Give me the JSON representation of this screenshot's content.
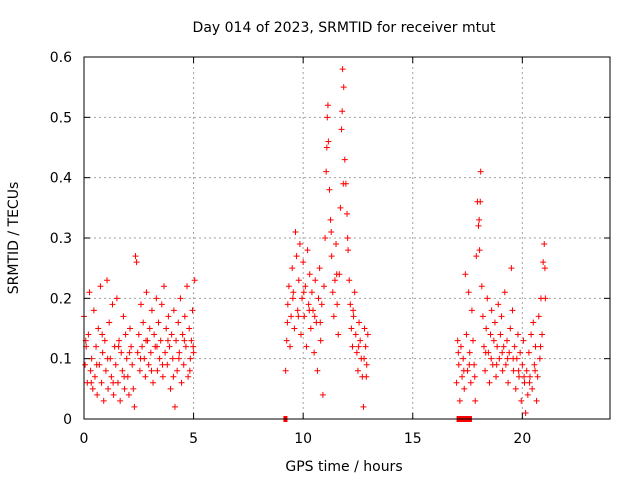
{
  "chart_data": {
    "type": "scatter",
    "title": "Day 014 of 2023, SRMTID for receiver mtut",
    "xlabel": "GPS time / hours",
    "ylabel": "SRMTID / TECUs",
    "xlim": [
      0,
      24
    ],
    "ylim": [
      0,
      0.6
    ],
    "xticks": [
      0,
      5,
      10,
      15,
      20
    ],
    "xtick_labels": [
      "0",
      "5",
      "10",
      "15",
      "20"
    ],
    "yticks": [
      0,
      0.1,
      0.2,
      0.3,
      0.4,
      0.5,
      0.6
    ],
    "ytick_labels": [
      "0",
      "0.1",
      "0.2",
      "0.3",
      "0.4",
      "0.5",
      "0.6"
    ],
    "grid": true,
    "marker": "+",
    "color": "#ff0000",
    "series": [
      {
        "name": "SRMTID",
        "points": [
          [
            0.0,
            0.17
          ],
          [
            0.05,
            0.09
          ],
          [
            0.1,
            0.12
          ],
          [
            0.15,
            0.06
          ],
          [
            0.2,
            0.14
          ],
          [
            0.25,
            0.21
          ],
          [
            0.3,
            0.08
          ],
          [
            0.35,
            0.1
          ],
          [
            0.4,
            0.05
          ],
          [
            0.45,
            0.18
          ],
          [
            0.5,
            0.07
          ],
          [
            0.55,
            0.12
          ],
          [
            0.6,
            0.04
          ],
          [
            0.65,
            0.15
          ],
          [
            0.7,
            0.09
          ],
          [
            0.75,
            0.22
          ],
          [
            0.8,
            0.06
          ],
          [
            0.85,
            0.11
          ],
          [
            0.9,
            0.03
          ],
          [
            0.95,
            0.13
          ],
          [
            1.0,
            0.08
          ],
          [
            1.05,
            0.23
          ],
          [
            1.1,
            0.05
          ],
          [
            1.15,
            0.16
          ],
          [
            1.2,
            0.1
          ],
          [
            1.25,
            0.07
          ],
          [
            1.3,
            0.19
          ],
          [
            1.35,
            0.04
          ],
          [
            1.4,
            0.12
          ],
          [
            1.45,
            0.09
          ],
          [
            1.5,
            0.2
          ],
          [
            1.55,
            0.06
          ],
          [
            1.6,
            0.13
          ],
          [
            1.65,
            0.03
          ],
          [
            1.7,
            0.11
          ],
          [
            1.75,
            0.08
          ],
          [
            1.8,
            0.17
          ],
          [
            1.85,
            0.05
          ],
          [
            1.9,
            0.14
          ],
          [
            1.95,
            0.1
          ],
          [
            2.0,
            0.07
          ],
          [
            2.05,
            0.04
          ],
          [
            2.1,
            0.15
          ],
          [
            2.15,
            0.12
          ],
          [
            2.2,
            0.09
          ],
          [
            2.25,
            0.05
          ],
          [
            2.3,
            0.02
          ],
          [
            2.35,
            0.27
          ],
          [
            2.4,
            0.26
          ],
          [
            2.45,
            0.11
          ],
          [
            2.5,
            0.14
          ],
          [
            2.55,
            0.08
          ],
          [
            2.6,
            0.19
          ],
          [
            2.65,
            0.12
          ],
          [
            2.7,
            0.16
          ],
          [
            2.75,
            0.1
          ],
          [
            2.8,
            0.07
          ],
          [
            2.85,
            0.21
          ],
          [
            2.9,
            0.13
          ],
          [
            2.95,
            0.09
          ],
          [
            3.0,
            0.15
          ],
          [
            3.05,
            0.11
          ],
          [
            3.1,
            0.18
          ],
          [
            3.15,
            0.06
          ],
          [
            3.2,
            0.14
          ],
          [
            3.25,
            0.12
          ],
          [
            3.3,
            0.2
          ],
          [
            3.35,
            0.08
          ],
          [
            3.4,
            0.16
          ],
          [
            3.45,
            0.1
          ],
          [
            3.5,
            0.13
          ],
          [
            3.55,
            0.19
          ],
          [
            3.6,
            0.07
          ],
          [
            3.65,
            0.22
          ],
          [
            3.7,
            0.11
          ],
          [
            3.75,
            0.15
          ],
          [
            3.8,
            0.09
          ],
          [
            3.85,
            0.17
          ],
          [
            3.9,
            0.12
          ],
          [
            3.95,
            0.05
          ],
          [
            4.0,
            0.14
          ],
          [
            4.05,
            0.1
          ],
          [
            4.1,
            0.18
          ],
          [
            4.15,
            0.02
          ],
          [
            4.2,
            0.13
          ],
          [
            4.25,
            0.08
          ],
          [
            4.3,
            0.16
          ],
          [
            4.35,
            0.11
          ],
          [
            4.4,
            0.2
          ],
          [
            4.45,
            0.06
          ],
          [
            4.5,
            0.14
          ],
          [
            4.55,
            0.09
          ],
          [
            4.6,
            0.17
          ],
          [
            4.65,
            0.12
          ],
          [
            4.7,
            0.22
          ],
          [
            4.75,
            0.07
          ],
          [
            4.8,
            0.15
          ],
          [
            4.85,
            0.1
          ],
          [
            4.9,
            0.13
          ],
          [
            4.95,
            0.18
          ],
          [
            5.0,
            0.11
          ],
          [
            5.05,
            0.23
          ],
          [
            0.08,
            0.13
          ],
          [
            0.33,
            0.06
          ],
          [
            0.58,
            0.09
          ],
          [
            0.83,
            0.14
          ],
          [
            1.08,
            0.1
          ],
          [
            1.33,
            0.06
          ],
          [
            1.58,
            0.12
          ],
          [
            1.83,
            0.07
          ],
          [
            2.08,
            0.11
          ],
          [
            2.58,
            0.1
          ],
          [
            2.83,
            0.13
          ],
          [
            3.08,
            0.08
          ],
          [
            3.33,
            0.12
          ],
          [
            3.58,
            0.09
          ],
          [
            3.83,
            0.13
          ],
          [
            4.08,
            0.07
          ],
          [
            4.33,
            0.1
          ],
          [
            4.58,
            0.13
          ],
          [
            4.83,
            0.08
          ],
          [
            4.98,
            0.12
          ],
          [
            9.2,
            0.08
          ],
          [
            9.25,
            0.13
          ],
          [
            9.3,
            0.19
          ],
          [
            9.35,
            0.22
          ],
          [
            9.4,
            0.12
          ],
          [
            9.45,
            0.17
          ],
          [
            9.5,
            0.25
          ],
          [
            9.55,
            0.21
          ],
          [
            9.6,
            0.15
          ],
          [
            9.65,
            0.31
          ],
          [
            9.7,
            0.27
          ],
          [
            9.75,
            0.18
          ],
          [
            9.8,
            0.23
          ],
          [
            9.85,
            0.29
          ],
          [
            9.9,
            0.14
          ],
          [
            9.95,
            0.2
          ],
          [
            10.0,
            0.26
          ],
          [
            10.05,
            0.17
          ],
          [
            10.1,
            0.22
          ],
          [
            10.15,
            0.12
          ],
          [
            10.2,
            0.28
          ],
          [
            10.25,
            0.19
          ],
          [
            10.3,
            0.24
          ],
          [
            10.35,
            0.15
          ],
          [
            10.4,
            0.21
          ],
          [
            10.45,
            0.18
          ],
          [
            10.5,
            0.11
          ],
          [
            10.55,
            0.23
          ],
          [
            10.6,
            0.16
          ],
          [
            10.65,
            0.08
          ],
          [
            10.7,
            0.2
          ],
          [
            10.75,
            0.25
          ],
          [
            10.8,
            0.13
          ],
          [
            10.85,
            0.19
          ],
          [
            10.9,
            0.04
          ],
          [
            10.95,
            0.22
          ],
          [
            11.0,
            0.3
          ],
          [
            11.05,
            0.41
          ],
          [
            11.1,
            0.5
          ],
          [
            11.15,
            0.46
          ],
          [
            11.2,
            0.38
          ],
          [
            11.25,
            0.33
          ],
          [
            11.3,
            0.27
          ],
          [
            11.35,
            0.21
          ],
          [
            11.4,
            0.17
          ],
          [
            11.45,
            0.23
          ],
          [
            11.5,
            0.29
          ],
          [
            11.55,
            0.19
          ],
          [
            11.6,
            0.14
          ],
          [
            11.65,
            0.24
          ],
          [
            11.7,
            0.35
          ],
          [
            11.75,
            0.48
          ],
          [
            11.8,
            0.58
          ],
          [
            11.85,
            0.55
          ],
          [
            11.9,
            0.43
          ],
          [
            11.95,
            0.39
          ],
          [
            12.0,
            0.34
          ],
          [
            12.05,
            0.28
          ],
          [
            12.1,
            0.23
          ],
          [
            12.15,
            0.19
          ],
          [
            12.2,
            0.15
          ],
          [
            12.25,
            0.12
          ],
          [
            12.3,
            0.17
          ],
          [
            12.35,
            0.21
          ],
          [
            12.4,
            0.14
          ],
          [
            12.45,
            0.11
          ],
          [
            12.5,
            0.08
          ],
          [
            12.55,
            0.16
          ],
          [
            12.6,
            0.13
          ],
          [
            12.65,
            0.1
          ],
          [
            12.7,
            0.07
          ],
          [
            12.75,
            0.02
          ],
          [
            12.8,
            0.15
          ],
          [
            12.85,
            0.12
          ],
          [
            12.9,
            0.09
          ],
          [
            12.95,
            0.14
          ],
          [
            9.28,
            0.16
          ],
          [
            9.53,
            0.2
          ],
          [
            9.78,
            0.17
          ],
          [
            10.03,
            0.21
          ],
          [
            10.28,
            0.18
          ],
          [
            10.53,
            0.17
          ],
          [
            10.78,
            0.16
          ],
          [
            11.08,
            0.45
          ],
          [
            11.13,
            0.52
          ],
          [
            11.28,
            0.31
          ],
          [
            11.53,
            0.24
          ],
          [
            11.78,
            0.51
          ],
          [
            11.83,
            0.39
          ],
          [
            12.03,
            0.3
          ],
          [
            12.28,
            0.18
          ],
          [
            12.53,
            0.12
          ],
          [
            12.78,
            0.1
          ],
          [
            12.88,
            0.07
          ],
          [
            17.0,
            0.06
          ],
          [
            17.05,
            0.13
          ],
          [
            17.1,
            0.09
          ],
          [
            17.15,
            0.03
          ],
          [
            17.2,
            0.12
          ],
          [
            17.25,
            0.07
          ],
          [
            17.3,
            0.1
          ],
          [
            17.35,
            0.05
          ],
          [
            17.4,
            0.24
          ],
          [
            17.45,
            0.14
          ],
          [
            17.5,
            0.08
          ],
          [
            17.55,
            0.21
          ],
          [
            17.6,
            0.11
          ],
          [
            17.65,
            0.06
          ],
          [
            17.7,
            0.18
          ],
          [
            17.75,
            0.13
          ],
          [
            17.8,
            0.09
          ],
          [
            17.85,
            0.03
          ],
          [
            17.9,
            0.27
          ],
          [
            17.95,
            0.36
          ],
          [
            18.0,
            0.32
          ],
          [
            18.05,
            0.28
          ],
          [
            18.1,
            0.41
          ],
          [
            18.15,
            0.22
          ],
          [
            18.2,
            0.17
          ],
          [
            18.25,
            0.12
          ],
          [
            18.3,
            0.08
          ],
          [
            18.35,
            0.15
          ],
          [
            18.4,
            0.2
          ],
          [
            18.45,
            0.11
          ],
          [
            18.5,
            0.06
          ],
          [
            18.55,
            0.14
          ],
          [
            18.6,
            0.18
          ],
          [
            18.65,
            0.09
          ],
          [
            18.7,
            0.13
          ],
          [
            18.75,
            0.16
          ],
          [
            18.8,
            0.07
          ],
          [
            18.85,
            0.12
          ],
          [
            18.9,
            0.19
          ],
          [
            18.95,
            0.1
          ],
          [
            19.0,
            0.14
          ],
          [
            19.05,
            0.17
          ],
          [
            19.1,
            0.08
          ],
          [
            19.15,
            0.12
          ],
          [
            19.2,
            0.21
          ],
          [
            19.25,
            0.09
          ],
          [
            19.3,
            0.13
          ],
          [
            19.35,
            0.06
          ],
          [
            19.4,
            0.11
          ],
          [
            19.45,
            0.15
          ],
          [
            19.5,
            0.25
          ],
          [
            19.55,
            0.18
          ],
          [
            19.6,
            0.08
          ],
          [
            19.65,
            0.12
          ],
          [
            19.7,
            0.05
          ],
          [
            19.75,
            0.1
          ],
          [
            19.8,
            0.14
          ],
          [
            19.85,
            0.07
          ],
          [
            19.9,
            0.11
          ],
          [
            19.95,
            0.03
          ],
          [
            20.0,
            0.09
          ],
          [
            20.05,
            0.13
          ],
          [
            20.1,
            0.06
          ],
          [
            20.15,
            0.01
          ],
          [
            20.2,
            0.08
          ],
          [
            20.25,
            0.04
          ],
          [
            20.3,
            0.11
          ],
          [
            20.35,
            0.07
          ],
          [
            20.4,
            0.14
          ],
          [
            20.45,
            0.05
          ],
          [
            20.5,
            0.16
          ],
          [
            20.55,
            0.09
          ],
          [
            20.6,
            0.12
          ],
          [
            20.65,
            0.03
          ],
          [
            20.7,
            0.07
          ],
          [
            20.75,
            0.17
          ],
          [
            20.8,
            0.1
          ],
          [
            20.85,
            0.2
          ],
          [
            20.9,
            0.14
          ],
          [
            20.95,
            0.26
          ],
          [
            21.0,
            0.29
          ],
          [
            21.05,
            0.2
          ],
          [
            17.08,
            0.11
          ],
          [
            17.33,
            0.08
          ],
          [
            17.58,
            0.09
          ],
          [
            17.83,
            0.07
          ],
          [
            18.03,
            0.33
          ],
          [
            18.08,
            0.36
          ],
          [
            18.33,
            0.11
          ],
          [
            18.58,
            0.1
          ],
          [
            18.83,
            0.09
          ],
          [
            19.08,
            0.11
          ],
          [
            19.33,
            0.1
          ],
          [
            19.58,
            0.1
          ],
          [
            19.83,
            0.08
          ],
          [
            20.08,
            0.07
          ],
          [
            20.33,
            0.06
          ],
          [
            20.58,
            0.08
          ],
          [
            20.83,
            0.12
          ],
          [
            21.03,
            0.25
          ]
        ]
      }
    ],
    "gap_markers": [
      {
        "x_start": 9.1,
        "x_end": 9.2
      },
      {
        "x_start": 17.0,
        "x_end": 17.7
      }
    ]
  }
}
